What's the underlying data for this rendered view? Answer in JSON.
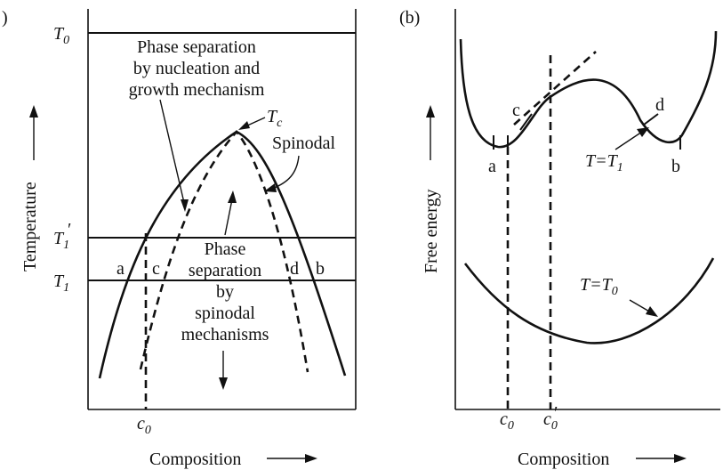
{
  "panel_a": {
    "label": ")",
    "T0": "T",
    "T0_sub": "0",
    "Tc": "T",
    "Tc_sub": "c",
    "T1p": "T",
    "T1p_sub": "1",
    "T1p_prime": "′",
    "T1": "T",
    "T1_sub": "1",
    "nucleation_text": [
      "Phase separation",
      "by nucleation and",
      "growth mechanism"
    ],
    "spinodal_label": "Spinodal",
    "spinodal_text": [
      "Phase",
      "separation",
      "by",
      "spinodal",
      "mechanisms"
    ],
    "point_a": "a",
    "point_c": "c",
    "point_d": "d",
    "point_b": "b",
    "ylabel": "Temperature",
    "xlabel": "Composition",
    "c0": "c",
    "c0_sub": "0"
  },
  "panel_b": {
    "label": "(b)",
    "point_a": "a",
    "point_c": "c",
    "point_d": "d",
    "point_b": "b",
    "T_eq_T1": "T=T",
    "T_eq_T1_sub": "1",
    "T_eq_T0": "T=T",
    "T_eq_T0_sub": "0",
    "ylabel": "Free energy",
    "xlabel": "Composition",
    "c0": "c",
    "c0_sub": "0",
    "c0p": "c",
    "c0p_sub": "0",
    "c0p_prime": "′"
  }
}
